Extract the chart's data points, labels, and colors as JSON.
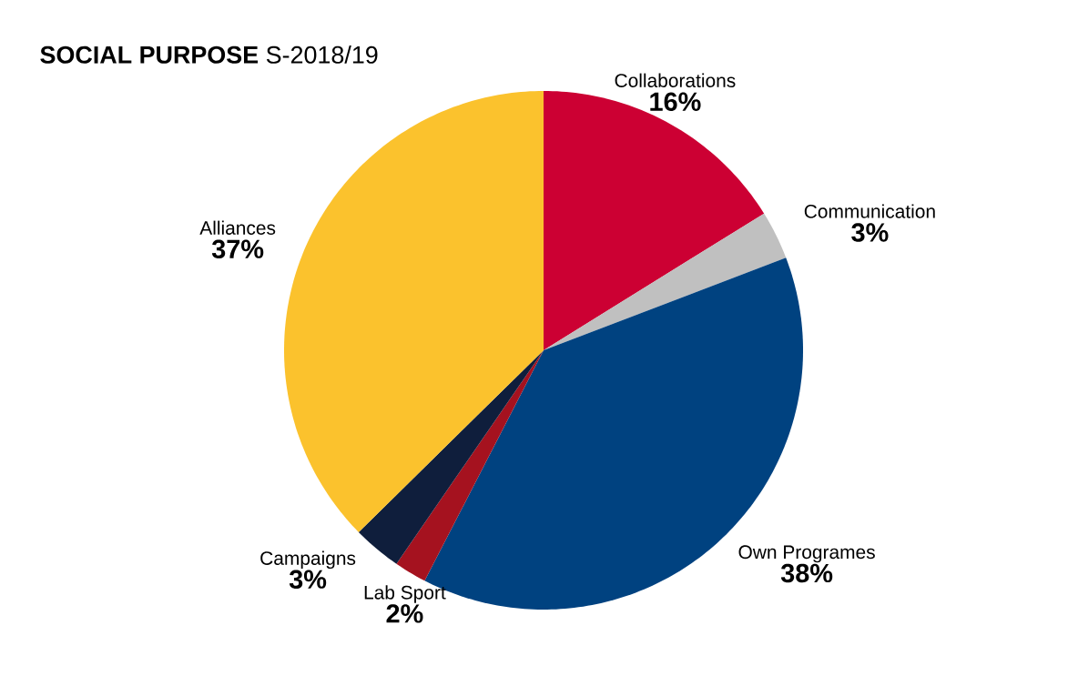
{
  "chart_data": {
    "type": "pie",
    "title": "**SOCIAL PURPOSE** S-2018/19",
    "categories": [
      "Collaborations",
      "Communication",
      "Own Programes",
      "Lab Sport",
      "Campaigns",
      "Alliances"
    ],
    "values": [
      16,
      3,
      38,
      2,
      3,
      37
    ],
    "value_labels": [
      "16%",
      "3%",
      "38%",
      "2%",
      "3%",
      "37%"
    ],
    "colors": [
      "#cc0033",
      "#c0c0c0",
      "#004280",
      "#a5121f",
      "#0f1e3c",
      "#fbc22d"
    ]
  }
}
